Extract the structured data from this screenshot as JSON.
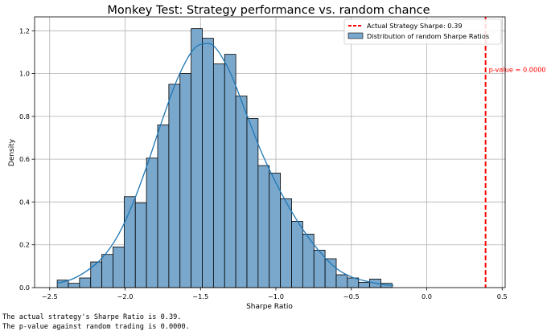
{
  "chart_data": {
    "type": "bar",
    "title": "Monkey Test: Strategy performance vs. random chance",
    "xlabel": "Sharpe Ratio",
    "ylabel": "Density",
    "xlim": [
      -2.6,
      0.52
    ],
    "ylim": [
      0,
      1.265
    ],
    "xticks": [
      -2.5,
      -2.0,
      -1.5,
      -1.0,
      -0.5,
      0.0,
      0.5
    ],
    "xtick_labels": [
      "−2.5",
      "−2.0",
      "−1.5",
      "−1.0",
      "−0.5",
      "0.0",
      "0.5"
    ],
    "yticks": [
      0.0,
      0.2,
      0.4,
      0.6,
      0.8,
      1.0,
      1.2
    ],
    "ytick_labels": [
      "0.0",
      "0.2",
      "0.4",
      "0.6",
      "0.8",
      "1.0",
      "1.2"
    ],
    "grid": true,
    "legend_position": "top-right",
    "bar_color": "#7aa8cd",
    "kde_color": "#1f77b4",
    "vline_color": "#ff0000",
    "histogram": {
      "name": "Distribution of random Sharpe Ratios",
      "bin_start": -2.45,
      "bin_width": 0.074,
      "values": [
        0.035,
        0.02,
        0.045,
        0.12,
        0.155,
        0.19,
        0.425,
        0.395,
        0.605,
        0.76,
        0.95,
        1.0,
        1.21,
        1.165,
        1.045,
        1.09,
        0.895,
        0.79,
        0.57,
        0.535,
        0.415,
        0.31,
        0.25,
        0.175,
        0.135,
        0.06,
        0.045,
        0.025,
        0.04,
        0.02
      ]
    },
    "kde": {
      "x": [
        -2.45,
        -2.35,
        -2.25,
        -2.15,
        -2.05,
        -1.95,
        -1.85,
        -1.75,
        -1.65,
        -1.55,
        -1.47,
        -1.4,
        -1.3,
        -1.2,
        -1.1,
        -1.0,
        -0.9,
        -0.8,
        -0.7,
        -0.6,
        -0.5,
        -0.4,
        -0.3,
        -0.22
      ],
      "y": [
        0.02,
        0.04,
        0.08,
        0.14,
        0.24,
        0.39,
        0.58,
        0.79,
        0.98,
        1.11,
        1.14,
        1.12,
        1.0,
        0.82,
        0.64,
        0.49,
        0.36,
        0.25,
        0.16,
        0.09,
        0.05,
        0.03,
        0.015,
        0.01
      ]
    },
    "vline": {
      "x": 0.39,
      "legend_label": "Actual Strategy Sharpe: 0.39",
      "annotation": "p-value = 0.0000",
      "annotation_y": 1.0
    }
  },
  "console": {
    "line1": "The actual strategy's Sharpe Ratio is 0.39.",
    "line2": "The p-value against random trading is 0.0000."
  }
}
